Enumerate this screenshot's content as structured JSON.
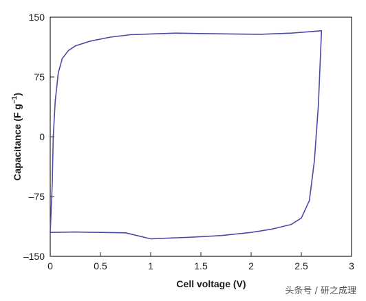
{
  "chart_data": {
    "type": "line",
    "title": "",
    "xlabel": "Cell voltage (V)",
    "ylabel_main": "Capacitance (F g",
    "ylabel_sup": "−1",
    "ylabel_end": ")",
    "xlim": [
      0,
      3
    ],
    "ylim": [
      -150,
      150
    ],
    "xticks": [
      0,
      0.5,
      1,
      1.5,
      2,
      2.5,
      3
    ],
    "xtick_labels": [
      "0",
      "0.5",
      "1",
      "1.5",
      "2",
      "2.5",
      "3"
    ],
    "yticks": [
      150,
      75,
      0,
      -75,
      -150
    ],
    "ytick_labels": [
      "150",
      "75",
      "0",
      "–75",
      "–150"
    ],
    "grid": false,
    "line_color": "#4a4aa8",
    "series": [
      {
        "x": [
          0.0,
          0.02,
          0.03,
          0.05,
          0.08,
          0.12,
          0.18,
          0.25,
          0.4,
          0.6,
          0.8,
          1.0,
          1.25,
          1.5,
          1.8,
          2.1,
          2.4,
          2.6,
          2.7,
          2.7,
          2.69,
          2.67,
          2.63,
          2.58,
          2.5,
          2.4,
          2.2,
          2.0,
          1.7,
          1.4,
          1.0,
          0.75,
          0.5,
          0.25,
          0.0
        ],
        "y": [
          -121,
          -60,
          0,
          45,
          80,
          98,
          108,
          114,
          120,
          125,
          128,
          129,
          130,
          129.5,
          129,
          128.5,
          130,
          132,
          133,
          130,
          100,
          40,
          -30,
          -80,
          -102,
          -110,
          -116,
          -120,
          -124,
          -126,
          -128,
          -120.5,
          -120,
          -119.5,
          -120
        ]
      }
    ]
  },
  "watermark": "头条号 / 研之成理"
}
